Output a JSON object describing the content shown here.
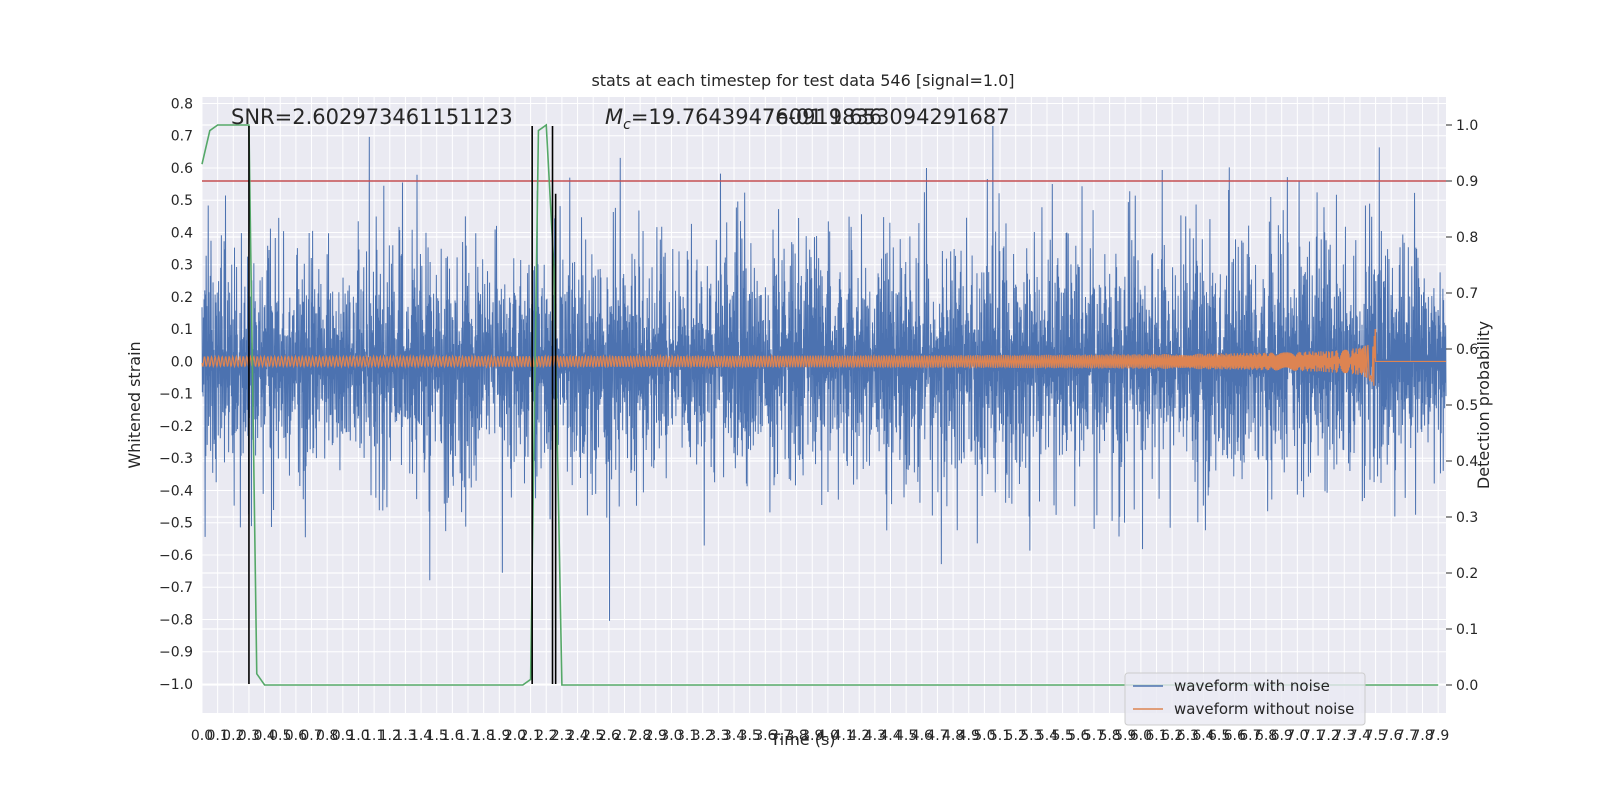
{
  "chart_data": {
    "type": "line",
    "title": "stats at each timestep for test data 546 [signal=1.0]",
    "xlabel": "Time (s)",
    "ylabel": "Whitened strain",
    "y2label": "Detection probability",
    "xlim": [
      0.0,
      7.95
    ],
    "ylim": [
      -1.09,
      0.82
    ],
    "y2lim": [
      -0.05,
      1.05
    ],
    "x_ticks": [
      0.0,
      0.1,
      0.2,
      0.3,
      0.4,
      0.5,
      0.6,
      0.7,
      0.8,
      0.9,
      1.0,
      1.1,
      1.2,
      1.3,
      1.4,
      1.5,
      1.6,
      1.7,
      1.8,
      1.9,
      2.0,
      2.1,
      2.2,
      2.3,
      2.4,
      2.5,
      2.6,
      2.7,
      2.8,
      2.9,
      3.0,
      3.1,
      3.2,
      3.3,
      3.4,
      3.5,
      3.6,
      3.7,
      3.8,
      3.9,
      4.0,
      4.1,
      4.2,
      4.3,
      4.4,
      4.5,
      4.6,
      4.7,
      4.8,
      4.9,
      5.0,
      5.1,
      5.2,
      5.3,
      5.4,
      5.5,
      5.6,
      5.7,
      5.8,
      5.9,
      6.0,
      6.1,
      6.2,
      6.3,
      6.4,
      6.5,
      6.6,
      6.7,
      6.8,
      6.9,
      7.0,
      7.1,
      7.2,
      7.3,
      7.4,
      7.5,
      7.6,
      7.7,
      7.8,
      7.9
    ],
    "y_ticks": [
      -1.0,
      -0.9,
      -0.8,
      -0.7,
      -0.6,
      -0.5,
      -0.4,
      -0.3,
      -0.2,
      -0.1,
      0.0,
      0.1,
      0.2,
      0.3,
      0.4,
      0.5,
      0.6,
      0.7,
      0.8
    ],
    "y2_ticks": [
      0.0,
      0.1,
      0.2,
      0.3,
      0.4,
      0.5,
      0.6,
      0.7,
      0.8,
      0.9,
      1.0
    ],
    "annotations": {
      "snr": "SNR=2.602973461151123",
      "mc_symbol": "M",
      "mc_sub": "c",
      "mc_value": "=19.764394760919836",
      "overlap_text": "7e-01 1.653094291687"
    },
    "series": [
      {
        "name": "waveform with noise",
        "color": "#4c72b0",
        "axis": "left",
        "kind": "noisy strain",
        "approx_sigma": 0.2,
        "approx_range": [
          -0.88,
          0.73
        ]
      },
      {
        "name": "waveform without noise",
        "color": "#dd8452",
        "axis": "left",
        "kind": "chirp",
        "merger_time": 7.5,
        "peak_amplitude": 0.11
      },
      {
        "name": "detection probability",
        "color": "#55a868",
        "axis": "right",
        "x": [
          0.0,
          0.05,
          0.1,
          0.15,
          0.2,
          0.25,
          0.3,
          0.35,
          0.4,
          0.45,
          2.05,
          2.1,
          2.15,
          2.2,
          2.25,
          2.3,
          2.35,
          2.4,
          7.9
        ],
        "y": [
          0.93,
          0.99,
          1.0,
          1.0,
          1.0,
          1.0,
          1.0,
          0.02,
          0.0,
          0.0,
          0.0,
          0.01,
          0.99,
          1.0,
          0.74,
          0.0,
          0.0,
          0.0,
          0.0
        ]
      }
    ],
    "threshold": {
      "value": 0.9,
      "axis": "right",
      "color": "#c44e52"
    },
    "vlines": [
      {
        "x": 0.3,
        "y_from": -1.0,
        "y_to": 0.73
      },
      {
        "x": 2.11,
        "y_from": -1.0,
        "y_to": 0.73
      },
      {
        "x": 2.24,
        "y_from": -1.0,
        "y_to": 0.73
      },
      {
        "x": 2.26,
        "y_from": -1.0,
        "y_to": 0.52
      }
    ],
    "legend": {
      "position": "lower-right",
      "entries": [
        "waveform with noise",
        "waveform without noise"
      ]
    },
    "grid": true,
    "style": {
      "background": "#eaeaf2",
      "grid_color": "#ffffff"
    }
  }
}
